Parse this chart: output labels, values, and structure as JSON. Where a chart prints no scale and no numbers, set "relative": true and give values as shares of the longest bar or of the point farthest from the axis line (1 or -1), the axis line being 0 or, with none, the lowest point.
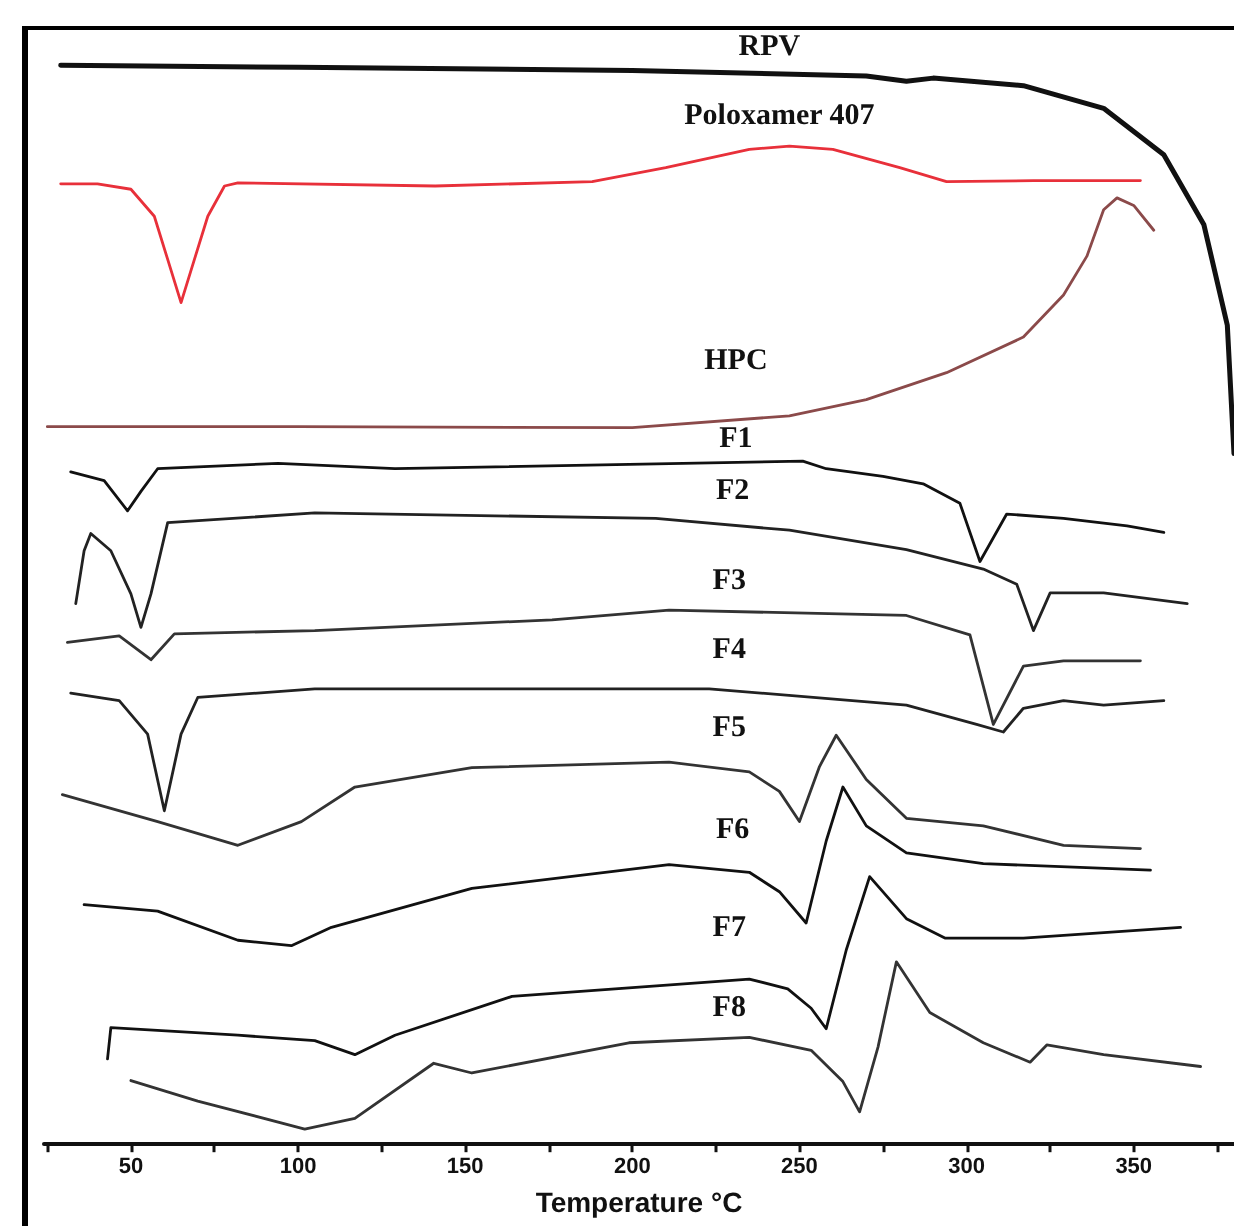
{
  "chart_data": {
    "type": "line",
    "relative": true,
    "xlabel": "Temperature °C",
    "xlim": [
      24,
      380
    ],
    "xticks": [
      {
        "value": 25,
        "label": null
      },
      50,
      {
        "value": 75,
        "label": null
      },
      100,
      {
        "value": 125,
        "label": null
      },
      150,
      {
        "value": 175,
        "label": null
      },
      200,
      {
        "value": 225,
        "label": null
      },
      250,
      {
        "value": 275,
        "label": null
      },
      300,
      {
        "value": 325,
        "label": null
      },
      350,
      {
        "value": 375,
        "label": null
      }
    ],
    "legend": false,
    "grid": false,
    "marker": "none",
    "line_style": "solid",
    "series": [
      {
        "name": "RPV",
        "color": "#111111",
        "x": [
          29,
          100,
          200,
          270,
          282,
          290,
          317,
          341,
          359,
          371,
          378,
          380
        ],
        "values": [
          1.0,
          0.998,
          0.995,
          0.99,
          0.985,
          0.988,
          0.981,
          0.96,
          0.917,
          0.852,
          0.759,
          0.64
        ]
      },
      {
        "name": "Poloxamer 407",
        "color": "#e8303a",
        "x": [
          29,
          40,
          50,
          57,
          61,
          65,
          69,
          73,
          78,
          82,
          141,
          188,
          210,
          235,
          247,
          260,
          280,
          294,
          320,
          352
        ],
        "values": [
          0.89,
          0.89,
          0.885,
          0.86,
          0.82,
          0.78,
          0.82,
          0.86,
          0.888,
          0.891,
          0.888,
          0.892,
          0.905,
          0.922,
          0.925,
          0.922,
          0.905,
          0.892,
          0.893,
          0.893
        ]
      },
      {
        "name": "HPC",
        "color": "#8b4a4a",
        "x": [
          25,
          100,
          200,
          247,
          270,
          294,
          317,
          329,
          336,
          341,
          345,
          350,
          356
        ],
        "values": [
          0.665,
          0.665,
          0.664,
          0.675,
          0.69,
          0.715,
          0.748,
          0.787,
          0.823,
          0.866,
          0.877,
          0.87,
          0.847
        ]
      },
      {
        "name": "F1",
        "color": "#111111",
        "x": [
          32,
          42,
          49,
          53,
          58,
          94,
          129,
          251,
          258,
          275,
          287,
          298,
          304,
          312,
          329,
          348,
          359
        ],
        "values": [
          0.623,
          0.615,
          0.587,
          0.605,
          0.626,
          0.631,
          0.626,
          0.633,
          0.626,
          0.619,
          0.612,
          0.594,
          0.54,
          0.584,
          0.58,
          0.573,
          0.567
        ]
      },
      {
        "name": "F2",
        "color": "#222222",
        "x": [
          33.5,
          36,
          38,
          44,
          50,
          53,
          56,
          61,
          105,
          207,
          247,
          282,
          305,
          315,
          320,
          325,
          341,
          366
        ],
        "values": [
          0.501,
          0.55,
          0.566,
          0.55,
          0.51,
          0.479,
          0.51,
          0.576,
          0.585,
          0.58,
          0.569,
          0.551,
          0.533,
          0.519,
          0.476,
          0.511,
          0.511,
          0.501
        ]
      },
      {
        "name": "F3",
        "color": "#333333",
        "x": [
          31,
          46.5,
          56,
          63,
          105,
          176,
          211,
          282,
          301,
          308,
          317,
          329,
          352
        ],
        "values": [
          0.465,
          0.471,
          0.449,
          0.473,
          0.476,
          0.486,
          0.495,
          0.49,
          0.472,
          0.389,
          0.443,
          0.448,
          0.448
        ]
      },
      {
        "name": "F4",
        "color": "#222222",
        "x": [
          32,
          46.5,
          55,
          60,
          65,
          70,
          105,
          223,
          282,
          303,
          311,
          317,
          329,
          341,
          359
        ],
        "values": [
          0.418,
          0.411,
          0.38,
          0.309,
          0.38,
          0.414,
          0.422,
          0.422,
          0.407,
          0.389,
          0.382,
          0.404,
          0.411,
          0.407,
          0.411
        ]
      },
      {
        "name": "F5",
        "color": "#333333",
        "x": [
          29.5,
          58,
          82,
          101,
          117,
          152,
          211,
          235,
          244,
          250,
          256,
          261,
          270,
          282,
          305,
          329,
          352
        ],
        "values": [
          0.324,
          0.299,
          0.277,
          0.299,
          0.331,
          0.349,
          0.354,
          0.345,
          0.327,
          0.299,
          0.35,
          0.379,
          0.338,
          0.302,
          0.295,
          0.277,
          0.274
        ]
      },
      {
        "name": "F6",
        "color": "#111111",
        "x": [
          36,
          58,
          82,
          98,
          110,
          152,
          211,
          235,
          244,
          252,
          258,
          263,
          270,
          282,
          305,
          355
        ],
        "values": [
          0.222,
          0.216,
          0.189,
          0.184,
          0.201,
          0.237,
          0.259,
          0.252,
          0.234,
          0.205,
          0.281,
          0.331,
          0.295,
          0.27,
          0.26,
          0.254
        ]
      },
      {
        "name": "F7",
        "color": "#111111",
        "x": [
          43,
          44,
          82,
          105,
          117,
          129,
          164,
          235,
          246.5,
          253.5,
          258,
          264,
          271,
          282,
          293.5,
          317,
          364
        ],
        "values": [
          0.079,
          0.108,
          0.101,
          0.096,
          0.083,
          0.101,
          0.137,
          0.153,
          0.144,
          0.126,
          0.107,
          0.18,
          0.248,
          0.209,
          0.191,
          0.191,
          0.201
        ]
      },
      {
        "name": "F8",
        "color": "#333333",
        "x": [
          50,
          70,
          102,
          117,
          140.6,
          152,
          199,
          235,
          253.5,
          263,
          268,
          273.5,
          279,
          289,
          305,
          319,
          324,
          341,
          370
        ],
        "values": [
          0.059,
          0.04,
          0.014,
          0.024,
          0.075,
          0.066,
          0.094,
          0.099,
          0.087,
          0.058,
          0.03,
          0.09,
          0.169,
          0.122,
          0.094,
          0.076,
          0.092,
          0.083,
          0.072
        ]
      }
    ]
  }
}
